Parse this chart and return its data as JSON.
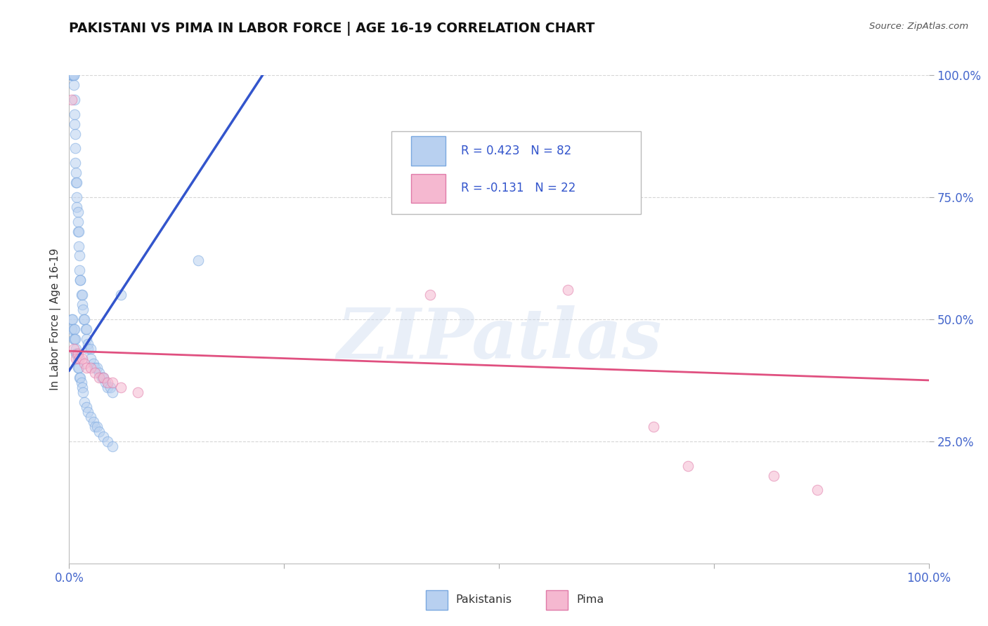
{
  "title": "PAKISTANI VS PIMA IN LABOR FORCE | AGE 16-19 CORRELATION CHART",
  "source": "Source: ZipAtlas.com",
  "ylabel": "In Labor Force | Age 16-19",
  "xlim": [
    0.0,
    1.0
  ],
  "ylim": [
    0.0,
    1.0
  ],
  "ytick_positions": [
    0.25,
    0.5,
    0.75,
    1.0
  ],
  "ytick_labels": [
    "25.0%",
    "50.0%",
    "75.0%",
    "100.0%"
  ],
  "grid_color": "#cccccc",
  "background_color": "#ffffff",
  "pakistani_color": "#b8d0f0",
  "pima_color": "#f5b8d0",
  "pakistani_edge_color": "#7aa8e0",
  "pima_edge_color": "#e07aa8",
  "trend_pakistani_color": "#3355cc",
  "trend_pima_color": "#e05080",
  "r_pakistani": 0.423,
  "n_pakistani": 82,
  "r_pima": -0.131,
  "n_pima": 22,
  "pakistani_x": [
    0.003,
    0.003,
    0.004,
    0.004,
    0.005,
    0.005,
    0.005,
    0.006,
    0.006,
    0.006,
    0.007,
    0.007,
    0.007,
    0.008,
    0.008,
    0.009,
    0.009,
    0.009,
    0.01,
    0.01,
    0.01,
    0.011,
    0.011,
    0.012,
    0.012,
    0.013,
    0.013,
    0.014,
    0.015,
    0.015,
    0.016,
    0.017,
    0.018,
    0.019,
    0.02,
    0.02,
    0.022,
    0.022,
    0.025,
    0.025,
    0.028,
    0.03,
    0.032,
    0.035,
    0.038,
    0.04,
    0.042,
    0.045,
    0.048,
    0.05,
    0.003,
    0.003,
    0.004,
    0.005,
    0.005,
    0.006,
    0.006,
    0.007,
    0.008,
    0.008,
    0.009,
    0.01,
    0.01,
    0.011,
    0.012,
    0.013,
    0.014,
    0.015,
    0.016,
    0.018,
    0.02,
    0.022,
    0.025,
    0.028,
    0.03,
    0.032,
    0.035,
    0.04,
    0.045,
    0.05,
    0.06,
    0.15
  ],
  "pakistani_y": [
    1.0,
    1.0,
    1.0,
    1.0,
    1.0,
    1.0,
    0.98,
    0.95,
    0.92,
    0.9,
    0.88,
    0.85,
    0.82,
    0.8,
    0.78,
    0.78,
    0.75,
    0.73,
    0.72,
    0.7,
    0.68,
    0.68,
    0.65,
    0.63,
    0.6,
    0.58,
    0.58,
    0.55,
    0.55,
    0.53,
    0.52,
    0.5,
    0.5,
    0.48,
    0.48,
    0.46,
    0.45,
    0.44,
    0.44,
    0.42,
    0.41,
    0.4,
    0.4,
    0.39,
    0.38,
    0.38,
    0.37,
    0.36,
    0.36,
    0.35,
    0.5,
    0.48,
    0.5,
    0.48,
    0.46,
    0.48,
    0.46,
    0.46,
    0.44,
    0.43,
    0.43,
    0.42,
    0.4,
    0.4,
    0.38,
    0.38,
    0.37,
    0.36,
    0.35,
    0.33,
    0.32,
    0.31,
    0.3,
    0.29,
    0.28,
    0.28,
    0.27,
    0.26,
    0.25,
    0.24,
    0.55,
    0.62
  ],
  "pima_x": [
    0.003,
    0.005,
    0.008,
    0.01,
    0.012,
    0.015,
    0.018,
    0.02,
    0.025,
    0.03,
    0.035,
    0.04,
    0.045,
    0.05,
    0.06,
    0.08,
    0.42,
    0.58,
    0.68,
    0.72,
    0.82,
    0.87
  ],
  "pima_y": [
    0.95,
    0.44,
    0.42,
    0.43,
    0.42,
    0.42,
    0.41,
    0.4,
    0.4,
    0.39,
    0.38,
    0.38,
    0.37,
    0.37,
    0.36,
    0.35,
    0.55,
    0.56,
    0.28,
    0.2,
    0.18,
    0.15
  ],
  "pak_trend_x": [
    0.0,
    0.225
  ],
  "pak_trend_y": [
    0.395,
    1.0
  ],
  "pima_trend_x": [
    0.0,
    1.0
  ],
  "pima_trend_y": [
    0.435,
    0.375
  ],
  "watermark_text": "ZIPatlas",
  "marker_size": 110,
  "alpha": 0.55
}
